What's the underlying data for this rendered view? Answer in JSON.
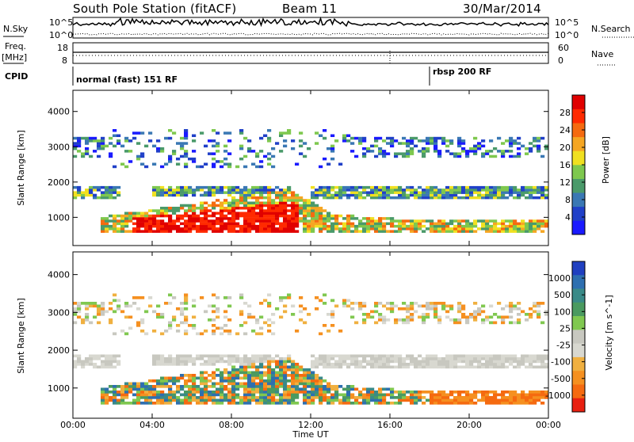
{
  "header": {
    "station_title": "South Pole Station (fitACF)",
    "beam": "Beam 11",
    "date": "30/Mar/2014"
  },
  "top_panels": {
    "nsky_label": "N.Sky",
    "nsearch_label": "N.Search",
    "freq_label_line1": "Freq.",
    "freq_label_line2": "[MHz]",
    "nave_label": "Nave",
    "cpid_label": "CPID",
    "left_ticks_noise": [
      "10^5",
      "10^0"
    ],
    "right_ticks_noise": [
      "10^5",
      "10^0"
    ],
    "left_ticks_freq": [
      "18",
      "8"
    ],
    "right_ticks_nave": [
      "60",
      "0"
    ]
  },
  "cpid_segments": [
    {
      "label": "normal (fast) 151 RF",
      "start_hour": 0
    },
    {
      "label": "rbsp 200 RF",
      "start_hour": 18
    }
  ],
  "colors": {
    "power_scale": [
      "#1a1aff",
      "#2040c8",
      "#3a78b4",
      "#4a9a6a",
      "#7ec84e",
      "#f0e020",
      "#f5a623",
      "#f56a10",
      "#ff2a00",
      "#e00000"
    ],
    "velocity_scale": [
      "#2040c0",
      "#2e6fb0",
      "#3a8a88",
      "#4a9a60",
      "#80c850",
      "#c8c8c0",
      "#d8d8d0",
      "#f0b040",
      "#f59020",
      "#f56a10",
      "#e82010"
    ]
  },
  "chart_data": [
    {
      "type": "heatmap",
      "panel": "power",
      "ylabel": "Slant Range [km]",
      "ylim": [
        200,
        4600
      ],
      "xlim_hours": [
        0,
        24
      ],
      "y_ticks": [
        "1000",
        "2000",
        "3000",
        "4000"
      ],
      "colorbar_label": "Power [dB]",
      "colorbar_ticks": [
        "28",
        "24",
        "20",
        "16",
        "12",
        "8",
        "4"
      ],
      "colorbar_range": [
        0,
        32
      ]
    },
    {
      "type": "heatmap",
      "panel": "velocity",
      "ylabel": "Slant Range [km]",
      "ylim": [
        200,
        4600
      ],
      "xlim_hours": [
        0,
        24
      ],
      "y_ticks": [
        "1000",
        "2000",
        "3000",
        "4000"
      ],
      "colorbar_label": "Velocity [m s^-1]",
      "colorbar_ticks": [
        "1000",
        "500",
        "100",
        "25",
        "-25",
        "-100",
        "-500",
        "-1000"
      ]
    }
  ],
  "x_axis": {
    "label": "Time UT",
    "ticks": [
      "00:00",
      "04:00",
      "08:00",
      "12:00",
      "16:00",
      "20:00",
      "00:00"
    ]
  }
}
